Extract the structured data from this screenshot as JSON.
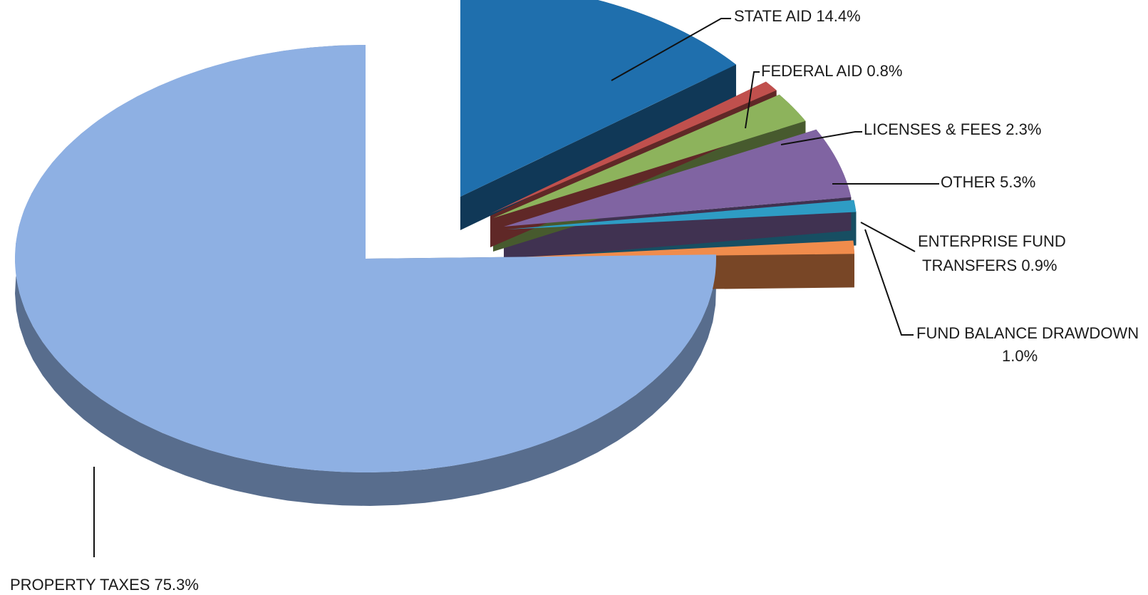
{
  "chart_data": {
    "type": "pie",
    "variant": "3d-exploded",
    "legend": "none",
    "slices": [
      {
        "label": "PROPERTY TAXES 75.3%",
        "value": 75.3,
        "color": "#8eb0e3"
      },
      {
        "label": "STATE AID 14.4%",
        "value": 14.4,
        "color": "#1f6fad"
      },
      {
        "label": "FEDERAL AID 0.8%",
        "value": 0.8,
        "color": "#c0504d"
      },
      {
        "label": "LICENSES & FEES 2.3%",
        "value": 2.3,
        "color": "#8db35c"
      },
      {
        "label": "OTHER 5.3%",
        "value": 5.3,
        "color": "#8064a2"
      },
      {
        "label": "ENTERPRISE FUND TRANSFERS 0.9%",
        "lines": [
          "ENTERPRISE FUND",
          "TRANSFERS 0.9%"
        ],
        "value": 0.9,
        "color": "#2e9cc4"
      },
      {
        "label": "FUND BALANCE DRAWDOWN 1.0%",
        "lines": [
          "FUND BALANCE DRAWDOWN",
          "1.0%"
        ],
        "value": 1.0,
        "color": "#f08c4c",
        "side_color": "#8a4a35"
      }
    ]
  }
}
